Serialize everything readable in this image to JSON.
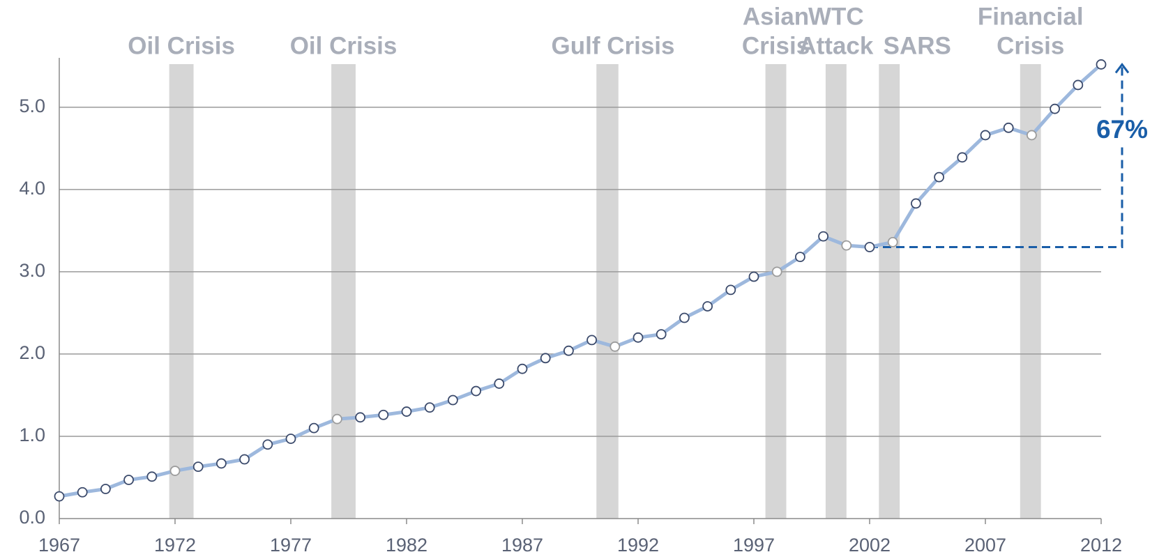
{
  "chart_data": {
    "type": "line",
    "x": [
      1967,
      1968,
      1969,
      1970,
      1971,
      1972,
      1973,
      1974,
      1975,
      1976,
      1977,
      1978,
      1979,
      1980,
      1981,
      1982,
      1983,
      1984,
      1985,
      1986,
      1987,
      1988,
      1989,
      1990,
      1991,
      1992,
      1993,
      1994,
      1995,
      1996,
      1997,
      1998,
      1999,
      2000,
      2001,
      2002,
      2003,
      2004,
      2005,
      2006,
      2007,
      2008,
      2009,
      2010,
      2011,
      2012
    ],
    "series": [
      {
        "color": "#9db8dd",
        "values": [
          0.27,
          0.32,
          0.36,
          0.47,
          0.51,
          0.58,
          0.63,
          0.67,
          0.72,
          0.9,
          0.97,
          1.1,
          1.21,
          1.23,
          1.26,
          1.3,
          1.35,
          1.44,
          1.55,
          1.64,
          1.82,
          1.95,
          2.04,
          2.17,
          2.09,
          2.2,
          2.24,
          2.44,
          2.58,
          2.78,
          2.94,
          3.0,
          3.18,
          3.43,
          3.32,
          3.3,
          3.36,
          3.83,
          4.15,
          4.39,
          4.66,
          4.75,
          4.66,
          4.98,
          5.27,
          5.52
        ]
      }
    ],
    "xlim": [
      1967,
      2012
    ],
    "xticks": [
      1967,
      1972,
      1977,
      1982,
      1987,
      1992,
      1997,
      2002,
      2007,
      2012
    ],
    "ylim": [
      0,
      5.6
    ],
    "yticks": [
      {
        "value": 0,
        "label": "0.0"
      },
      {
        "value": 1,
        "label": "1.0"
      },
      {
        "value": 2,
        "label": "2.0"
      },
      {
        "value": 3,
        "label": "3.0"
      },
      {
        "value": 4,
        "label": "4.0"
      },
      {
        "value": 5,
        "label": "5.0"
      }
    ],
    "grid": true,
    "crises": [
      {
        "label": [
          "Oil Crisis"
        ],
        "start": 1971.75,
        "end": 1972.8
      },
      {
        "label": [
          "Oil Crisis"
        ],
        "start": 1978.75,
        "end": 1979.8
      },
      {
        "label": [
          "Gulf Crisis"
        ],
        "start": 1990.2,
        "end": 1991.15
      },
      {
        "label": [
          "Asian",
          "Crisis"
        ],
        "start": 1997.5,
        "end": 1998.4
      },
      {
        "label": [
          "WTC",
          "Attack"
        ],
        "start": 2000.1,
        "end": 2001.0
      },
      {
        "label": [
          "SARS"
        ],
        "start": 2002.4,
        "end": 2003.3
      },
      {
        "label": [
          "Financial",
          "Crisis"
        ],
        "start": 2008.5,
        "end": 2009.4
      }
    ],
    "band_color": "#d6d6d6",
    "annotation": {
      "text": "67%",
      "color": "#1a5ea8"
    }
  }
}
